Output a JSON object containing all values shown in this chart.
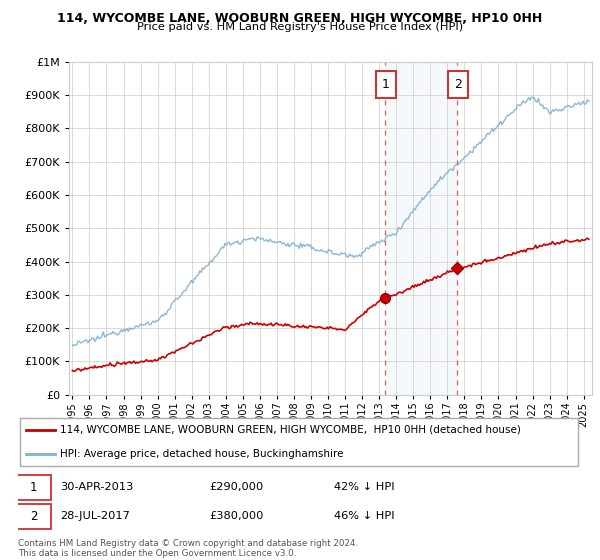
{
  "title1": "114, WYCOMBE LANE, WOOBURN GREEN, HIGH WYCOMBE, HP10 0HH",
  "title2": "Price paid vs. HM Land Registry's House Price Index (HPI)",
  "background_color": "#ffffff",
  "grid_color": "#cccccc",
  "hpi_color": "#7eb0d4",
  "hpi_fill_color": "#ddeeff",
  "price_color": "#cc0000",
  "sale1_date": 2013.33,
  "sale1_price": 290000,
  "sale2_date": 2017.58,
  "sale2_price": 380000,
  "legend_line1": "114, WYCOMBE LANE, WOOBURN GREEN, HIGH WYCOMBE,  HP10 0HH (detached house)",
  "legend_line2": "HPI: Average price, detached house, Buckinghamshire",
  "footer": "Contains HM Land Registry data © Crown copyright and database right 2024.\nThis data is licensed under the Open Government Licence v3.0.",
  "ylim": [
    0,
    1000000
  ],
  "xlim_start": 1994.8,
  "xlim_end": 2025.5
}
